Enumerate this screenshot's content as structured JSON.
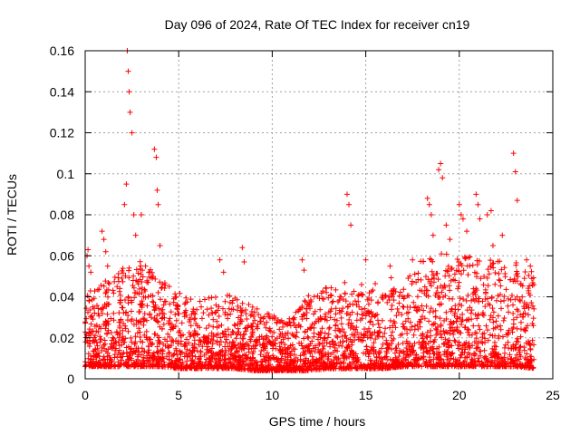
{
  "chart_data": {
    "type": "scatter",
    "title": "Day 096 of 2024, Rate Of TEC Index for receiver cn19",
    "xlabel": "GPS time / hours",
    "ylabel": "ROTI / TECUs",
    "xlim": [
      0,
      25
    ],
    "ylim": [
      0,
      0.16
    ],
    "xticks": [
      0,
      5,
      10,
      15,
      20,
      25
    ],
    "xtick_labels": [
      "0",
      "5",
      "10",
      "15",
      "20",
      "25"
    ],
    "yticks": [
      0,
      0.02,
      0.04,
      0.06,
      0.08,
      0.1,
      0.12,
      0.14,
      0.16
    ],
    "ytick_labels": [
      "0",
      "0.02",
      "0.04",
      "0.06",
      "0.08",
      "0.1",
      "0.12",
      "0.14",
      "0.16"
    ],
    "grid": true,
    "marker": "+",
    "series": [
      {
        "name": "ROTI",
        "color": "#ff0000",
        "x": [
          0.1,
          0.15,
          0.2,
          0.3,
          0.9,
          1.0,
          1.1,
          1.2,
          2.1,
          2.2,
          2.25,
          2.3,
          2.35,
          2.4,
          2.5,
          2.6,
          2.7,
          3.0,
          3.7,
          3.8,
          3.85,
          3.9,
          4.0,
          7.2,
          7.4,
          8.4,
          8.5,
          11.6,
          11.7,
          14.0,
          14.1,
          14.2,
          15.0,
          16.3,
          17.5,
          18.3,
          18.4,
          18.5,
          18.6,
          18.9,
          19.0,
          19.1,
          19.3,
          19.5,
          20.0,
          20.1,
          20.2,
          20.4,
          20.9,
          21.0,
          21.1,
          21.5,
          21.7,
          21.8,
          22.3,
          22.9,
          23.0,
          23.1,
          23.6,
          23.8
        ],
        "y": [
          0.06,
          0.063,
          0.055,
          0.052,
          0.072,
          0.068,
          0.062,
          0.055,
          0.085,
          0.095,
          0.16,
          0.15,
          0.14,
          0.13,
          0.12,
          0.08,
          0.07,
          0.08,
          0.112,
          0.108,
          0.092,
          0.085,
          0.065,
          0.058,
          0.052,
          0.064,
          0.057,
          0.058,
          0.053,
          0.09,
          0.085,
          0.075,
          0.058,
          0.055,
          0.058,
          0.088,
          0.085,
          0.08,
          0.07,
          0.102,
          0.105,
          0.098,
          0.075,
          0.068,
          0.085,
          0.08,
          0.078,
          0.072,
          0.09,
          0.085,
          0.078,
          0.08,
          0.082,
          0.065,
          0.07,
          0.11,
          0.101,
          0.087,
          0.058,
          0.055
        ],
        "density_profile": {
          "hour_breakpoints": [
            0,
            1,
            2,
            3,
            4,
            5,
            6,
            7,
            8,
            9,
            10,
            11,
            12,
            13,
            14,
            15,
            16,
            17,
            18,
            19,
            20,
            21,
            22,
            23,
            24
          ],
          "upper_envelope": [
            0.042,
            0.048,
            0.055,
            0.058,
            0.05,
            0.042,
            0.038,
            0.042,
            0.04,
            0.035,
            0.032,
            0.03,
            0.042,
            0.045,
            0.048,
            0.046,
            0.05,
            0.048,
            0.058,
            0.062,
            0.06,
            0.06,
            0.058,
            0.058,
            0.052
          ],
          "lower_envelope": [
            0.006,
            0.006,
            0.006,
            0.006,
            0.006,
            0.005,
            0.005,
            0.005,
            0.005,
            0.004,
            0.004,
            0.004,
            0.004,
            0.005,
            0.005,
            0.005,
            0.005,
            0.006,
            0.006,
            0.006,
            0.006,
            0.006,
            0.006,
            0.006,
            0.005
          ]
        }
      }
    ]
  }
}
